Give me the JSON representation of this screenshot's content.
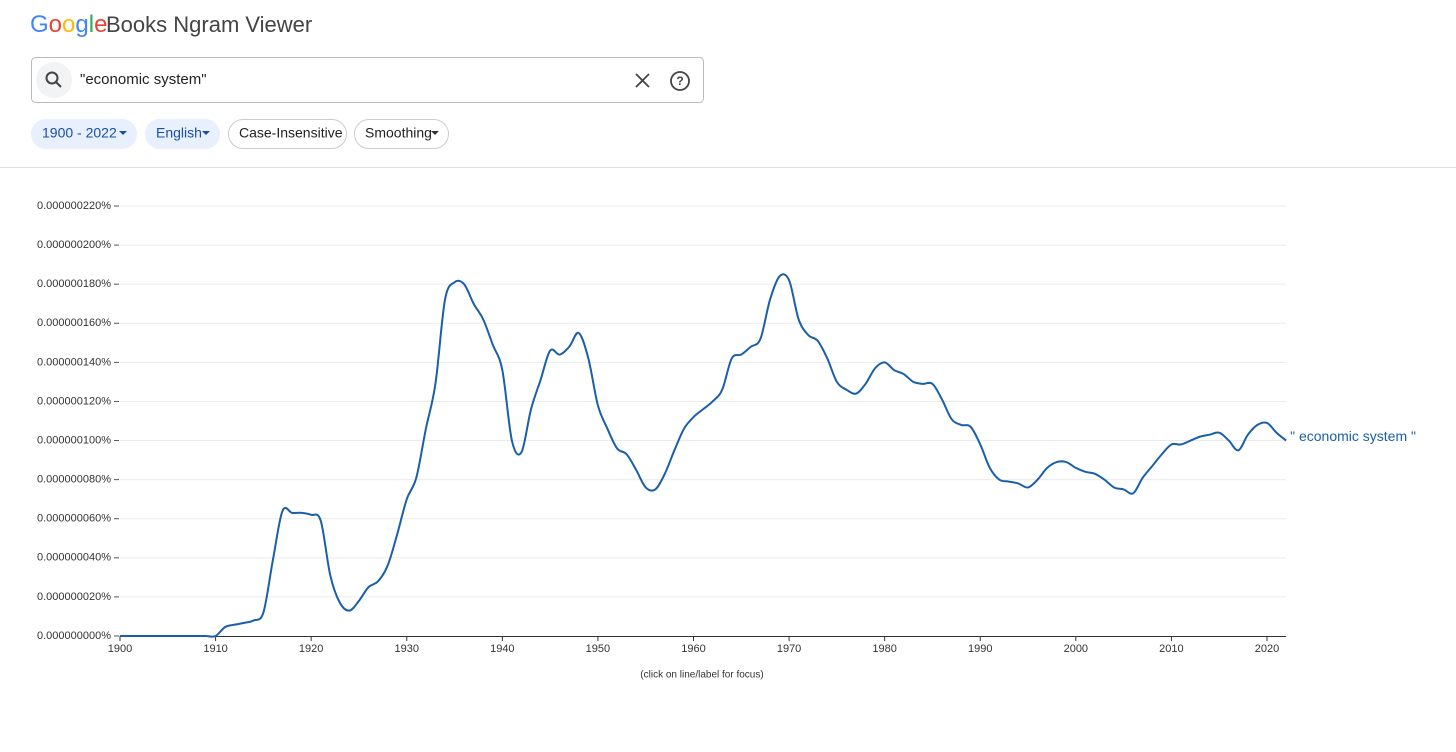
{
  "header": {
    "logo": "Google",
    "title": "Books Ngram Viewer"
  },
  "search": {
    "query": "\"economic system\""
  },
  "filters": [
    "1900 - 2022",
    "English",
    "Case-Insensitive",
    "Smoothing"
  ],
  "chart_data": {
    "type": "line",
    "note": "(click on line/label for focus)",
    "x": [
      1900,
      1901,
      1902,
      1903,
      1904,
      1905,
      1906,
      1907,
      1908,
      1909,
      1910,
      1911,
      1912,
      1913,
      1914,
      1915,
      1916,
      1917,
      1918,
      1919,
      1920,
      1921,
      1922,
      1923,
      1924,
      1925,
      1926,
      1927,
      1928,
      1929,
      1930,
      1931,
      1932,
      1933,
      1934,
      1935,
      1936,
      1937,
      1938,
      1939,
      1940,
      1941,
      1942,
      1943,
      1944,
      1945,
      1946,
      1947,
      1948,
      1949,
      1950,
      1951,
      1952,
      1953,
      1954,
      1955,
      1956,
      1957,
      1958,
      1959,
      1960,
      1961,
      1962,
      1963,
      1964,
      1965,
      1966,
      1967,
      1968,
      1969,
      1970,
      1971,
      1972,
      1973,
      1974,
      1975,
      1976,
      1977,
      1978,
      1979,
      1980,
      1981,
      1982,
      1983,
      1984,
      1985,
      1986,
      1987,
      1988,
      1989,
      1990,
      1991,
      1992,
      1993,
      1994,
      1995,
      1996,
      1997,
      1998,
      1999,
      2000,
      2001,
      2002,
      2003,
      2004,
      2005,
      2006,
      2007,
      2008,
      2009,
      2010,
      2011,
      2012,
      2013,
      2014,
      2015,
      2016,
      2017,
      2018,
      2019,
      2020,
      2021,
      2022
    ],
    "series": [
      {
        "name": "\" economic system \"",
        "color": "#1a5fa8",
        "values": [
          0,
          0,
          0,
          0,
          0,
          0,
          0,
          0,
          0,
          0,
          0,
          4.6e-09,
          5.8e-09,
          6.7e-09,
          8e-09,
          1.2e-08,
          3.9e-08,
          6.4e-08,
          6.3e-08,
          6.3e-08,
          6.2e-08,
          5.9e-08,
          3.1e-08,
          1.7e-08,
          1.3e-08,
          1.8e-08,
          2.5e-08,
          2.8e-08,
          3.6e-08,
          5.2e-08,
          7e-08,
          8.1e-08,
          1.06e-07,
          1.29e-07,
          1.72e-07,
          1.81e-07,
          1.8e-07,
          1.7e-07,
          1.62e-07,
          1.49e-07,
          1.36e-07,
          1e-07,
          9.4e-08,
          1.16e-07,
          1.31e-07,
          1.46e-07,
          1.44e-07,
          1.48e-07,
          1.55e-07,
          1.42e-07,
          1.18e-07,
          1.06e-07,
          9.6e-08,
          9.3e-08,
          8.5e-08,
          7.6e-08,
          7.5e-08,
          8.3e-08,
          9.5e-08,
          1.06e-07,
          1.12e-07,
          1.16e-07,
          1.2e-07,
          1.26e-07,
          1.42e-07,
          1.44e-07,
          1.48e-07,
          1.52e-07,
          1.72e-07,
          1.84e-07,
          1.82e-07,
          1.62e-07,
          1.54e-07,
          1.51e-07,
          1.42e-07,
          1.3e-07,
          1.26e-07,
          1.24e-07,
          1.29e-07,
          1.37e-07,
          1.4e-07,
          1.36e-07,
          1.34e-07,
          1.3e-07,
          1.29e-07,
          1.29e-07,
          1.21e-07,
          1.11e-07,
          1.08e-07,
          1.07e-07,
          9.8e-08,
          8.6e-08,
          8e-08,
          7.9e-08,
          7.8e-08,
          7.6e-08,
          8e-08,
          8.6e-08,
          8.9e-08,
          8.9e-08,
          8.6e-08,
          8.4e-08,
          8.3e-08,
          8e-08,
          7.6e-08,
          7.5e-08,
          7.3e-08,
          8.1e-08,
          8.7e-08,
          9.3e-08,
          9.8e-08,
          9.8e-08,
          1e-07,
          1.02e-07,
          1.03e-07,
          1.04e-07,
          1e-07,
          9.5e-08,
          1.03e-07,
          1.08e-07,
          1.09e-07,
          1.04e-07,
          1e-07
        ]
      }
    ],
    "xlim": [
      1900,
      2022
    ],
    "xticks": [
      1900,
      1910,
      1920,
      1930,
      1940,
      1950,
      1960,
      1970,
      1980,
      1990,
      2000,
      2010,
      2020
    ],
    "ylim": [
      0,
      2.2e-07
    ],
    "yticks": [
      {
        "value": 0,
        "label": "0.000000000%"
      },
      {
        "value": 2e-08,
        "label": "0.000000020%"
      },
      {
        "value": 4e-08,
        "label": "0.000000040%"
      },
      {
        "value": 6e-08,
        "label": "0.000000060%"
      },
      {
        "value": 8e-08,
        "label": "0.000000080%"
      },
      {
        "value": 1e-07,
        "label": "0.000000100%"
      },
      {
        "value": 1.2e-07,
        "label": "0.000000120%"
      },
      {
        "value": 1.4e-07,
        "label": "0.000000140%"
      },
      {
        "value": 1.6e-07,
        "label": "0.000000160%"
      },
      {
        "value": 1.8e-07,
        "label": "0.000000180%"
      },
      {
        "value": 2e-07,
        "label": "0.000000200%"
      },
      {
        "value": 2.2e-07,
        "label": "0.000000220%"
      }
    ],
    "grid": true
  }
}
